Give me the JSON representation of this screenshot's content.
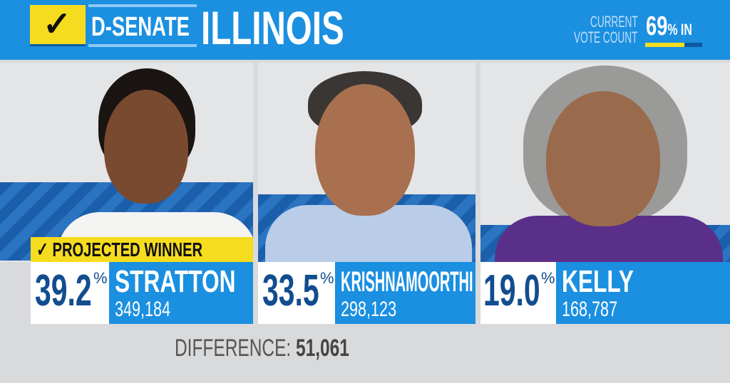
{
  "header": {
    "check_icon": "✓",
    "race": "D-SENATE",
    "state": "ILLINOIS",
    "vote_count_label_1": "CURRENT",
    "vote_count_label_2": "VOTE COUNT",
    "percent_in": "69",
    "percent_sign": "%",
    "in_label": " IN",
    "percent_in_fraction": 0.69
  },
  "winner_banner": {
    "check": "✓",
    "label": "PROJECTED WINNER"
  },
  "candidates": [
    {
      "name": "STRATTON",
      "percent": "39.2",
      "votes": "349,184",
      "projected_winner": true
    },
    {
      "name": "KRISHNAMOORTHI",
      "percent": "33.5",
      "votes": "298,123",
      "projected_winner": false
    },
    {
      "name": "KELLY",
      "percent": "19.0",
      "votes": "168,787",
      "projected_winner": false
    }
  ],
  "difference": {
    "label": "DIFFERENCE:",
    "value": "51,061"
  },
  "colors": {
    "blue": "#1b8fe0",
    "yellow": "#f6dc1f",
    "navy": "#124d8f"
  }
}
